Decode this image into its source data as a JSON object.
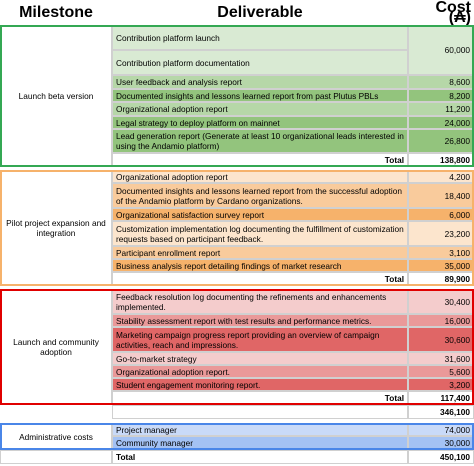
{
  "header": {
    "milestone": "Milestone",
    "deliverable": "Deliverable",
    "cost": "Cost (₳)"
  },
  "sections": [
    {
      "milestone": "Launch beta version",
      "border": "#34a853",
      "rows": [
        {
          "deliverable": "Contribution platform launch",
          "cost": "60,000",
          "color": "#d9ead3"
        },
        {
          "deliverable": "Contribution platform documentation",
          "color": "#d9ead3"
        },
        {
          "deliverable": "User feedback and analysis report",
          "cost": "8,600",
          "color": "#b6d7a8"
        },
        {
          "deliverable": "Documented insights and lessons learned report from past Plutus PBLs",
          "cost": "8,200",
          "color": "#93c47d"
        },
        {
          "deliverable": "Organizational adoption report",
          "cost": "11,200",
          "color": "#b6d7a8"
        },
        {
          "deliverable": "Legal strategy to deploy platform on mainnet",
          "cost": "24,000",
          "color": "#93c47d"
        },
        {
          "deliverable": "Lead generation report (Generate at least 10 organizational leads interested in using the Andamio platform)",
          "cost": "26,800",
          "color": "#93c47d"
        }
      ],
      "total_label": "Total",
      "total": "138,800"
    },
    {
      "milestone": "Pilot project expansion and integration",
      "border": "#f6b26b",
      "rows": [
        {
          "deliverable": "Organizational adoption report",
          "cost": "4,200",
          "color": "#fce5cd"
        },
        {
          "deliverable": "Documented insights and lessons learned report from the successful adoption of the Andamio platform by Cardano organizations.",
          "cost": "18,400",
          "color": "#f9cb9c"
        },
        {
          "deliverable": "Organizational satisfaction survey report",
          "cost": "6,000",
          "color": "#f6b26b"
        },
        {
          "deliverable": "Customization implementation log documenting the fulfillment of customization requests based on participant feedback.",
          "cost": "23,200",
          "color": "#fce5cd"
        },
        {
          "deliverable": "Participant enrollment report",
          "cost": "3,100",
          "color": "#f9cb9c"
        },
        {
          "deliverable": "Business analysis report detailing findings of market research",
          "cost": "35,000",
          "color": "#f6b26b"
        }
      ],
      "total_label": "Total",
      "total": "89,900"
    },
    {
      "milestone": "Launch and community adoption",
      "border": "#e00000",
      "rows": [
        {
          "deliverable": "Feedback resolution log documenting the refinements and enhancements implemented.",
          "cost": "30,400",
          "color": "#f4cccc"
        },
        {
          "deliverable": "Stability assessment report with test results and performance metrics.",
          "cost": "16,000",
          "color": "#ea9999"
        },
        {
          "deliverable": "Marketing campaign progress report providing an overview of campaign activities, reach and impressions.",
          "cost": "30,600",
          "color": "#e06666"
        },
        {
          "deliverable": "Go-to-market strategy",
          "cost": "31,600",
          "color": "#f4cccc"
        },
        {
          "deliverable": "Organizational adoption report.",
          "cost": "5,600",
          "color": "#ea9999"
        },
        {
          "deliverable": "Student engagement monitoring report.",
          "cost": "3,200",
          "color": "#e06666"
        }
      ],
      "total_label": "Total",
      "total": "117,400"
    },
    {
      "milestone": "Administrative costs",
      "border": "#4a86e8",
      "rows": [
        {
          "deliverable": "Project manager",
          "cost": "74,000",
          "color": "#c9daf8"
        },
        {
          "deliverable": "Community manager",
          "cost": "30,000",
          "color": "#a4c2f4"
        }
      ]
    }
  ],
  "subtotal": "346,100",
  "grand_total": {
    "label": "Total",
    "cost": "450,100"
  }
}
